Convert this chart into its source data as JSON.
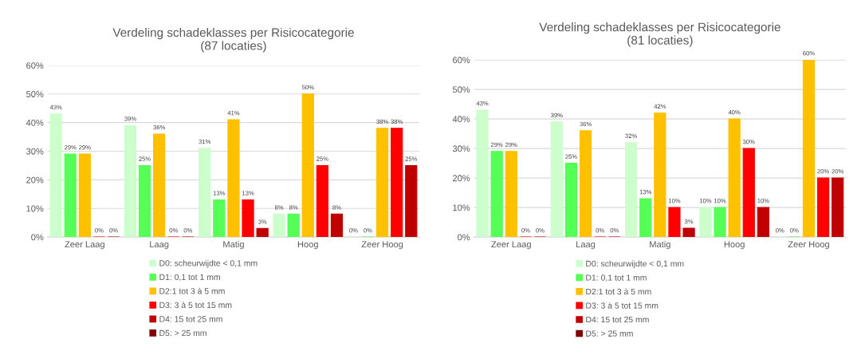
{
  "chart_data": [
    {
      "type": "bar",
      "title": "Verdeling schadeklasses per Risicocategorie\n(87 locaties)",
      "categories": [
        "Zeer Laag",
        "Laag",
        "Matig",
        "Hoog",
        "Zeer Hoog"
      ],
      "series": [
        {
          "name": "D0: scheurwijdte < 0,1 mm",
          "color": "#ccffcc",
          "values": [
            43,
            39,
            31,
            8,
            0
          ],
          "value_labels": [
            "43%",
            "39%",
            "31%",
            "8%",
            "0%"
          ]
        },
        {
          "name": "D1: 0,1 tot 1 mm",
          "color": "#55ff55",
          "values": [
            29,
            25,
            13,
            8,
            0
          ],
          "value_labels": [
            "29%",
            "25%",
            "13%",
            "8%",
            "0%"
          ]
        },
        {
          "name": "D2:1 tot 3 à 5 mm",
          "color": "#ffc000",
          "values": [
            29,
            36,
            41,
            50,
            38
          ],
          "value_labels": [
            "29%",
            "36%",
            "41%",
            "50%",
            "38%"
          ]
        },
        {
          "name": "D3: 3 à 5 tot 15 mm",
          "color": "#ff0000",
          "values": [
            0,
            0,
            13,
            25,
            38
          ],
          "value_labels": [
            "0%",
            "0%",
            "13%",
            "25%",
            "38%"
          ]
        },
        {
          "name": "D4: 15 tot 25 mm",
          "color": "#c00000",
          "values": [
            0,
            0,
            3,
            8,
            25
          ],
          "value_labels": [
            "0%",
            "0%",
            "3%",
            "8%",
            "25%"
          ]
        },
        {
          "name": "D5: > 25 mm",
          "color": "#7f0000",
          "values": [
            null,
            null,
            null,
            null,
            null
          ]
        }
      ],
      "ylim": [
        0,
        60
      ],
      "yticks": [
        {
          "value": 0,
          "label": "0%"
        },
        {
          "value": 10,
          "label": "10%"
        },
        {
          "value": 20,
          "label": "20%"
        },
        {
          "value": 30,
          "label": "30%"
        },
        {
          "value": 40,
          "label": "40%"
        },
        {
          "value": 50,
          "label": "50%"
        },
        {
          "value": 60,
          "label": "60%"
        }
      ],
      "grid": "y",
      "legend": "bottom"
    },
    {
      "type": "bar",
      "title": "Verdeling schadeklasses per Risicocategorie\n(81 locaties)",
      "categories": [
        "Zeer Laag",
        "Laag",
        "Matig",
        "Hoog",
        "Zeer Hoog"
      ],
      "series": [
        {
          "name": "D0: scheurwijdte < 0,1 mm",
          "color": "#ccffcc",
          "values": [
            43,
            39,
            32,
            10,
            0
          ],
          "value_labels": [
            "43%",
            "39%",
            "32%",
            "10%",
            "0%"
          ]
        },
        {
          "name": "D1: 0,1 tot 1 mm",
          "color": "#55ff55",
          "values": [
            29,
            25,
            13,
            10,
            0
          ],
          "value_labels": [
            "29%",
            "25%",
            "13%",
            "10%",
            "0%"
          ]
        },
        {
          "name": "D2:1 tot 3 à 5 mm",
          "color": "#ffc000",
          "values": [
            29,
            36,
            42,
            40,
            60
          ],
          "value_labels": [
            "29%",
            "36%",
            "42%",
            "40%",
            "60%"
          ]
        },
        {
          "name": "D3: 3 à 5 tot 15 mm",
          "color": "#ff0000",
          "values": [
            0,
            0,
            10,
            30,
            20
          ],
          "value_labels": [
            "0%",
            "0%",
            "10%",
            "30%",
            "20%"
          ]
        },
        {
          "name": "D4: 15 tot 25 mm",
          "color": "#c00000",
          "values": [
            0,
            0,
            3,
            10,
            20
          ],
          "value_labels": [
            "0%",
            "0%",
            "3%",
            "10%",
            "20%"
          ]
        },
        {
          "name": "D5: > 25 mm",
          "color": "#7f0000",
          "values": [
            null,
            null,
            null,
            null,
            null
          ]
        }
      ],
      "ylim": [
        0,
        60
      ],
      "yticks": [
        {
          "value": 0,
          "label": "0%"
        },
        {
          "value": 10,
          "label": "10%"
        },
        {
          "value": 20,
          "label": "20%"
        },
        {
          "value": 30,
          "label": "30%"
        },
        {
          "value": 40,
          "label": "40%"
        },
        {
          "value": 50,
          "label": "50%"
        },
        {
          "value": 60,
          "label": "60%"
        }
      ],
      "grid": "y",
      "legend": "bottom"
    }
  ]
}
